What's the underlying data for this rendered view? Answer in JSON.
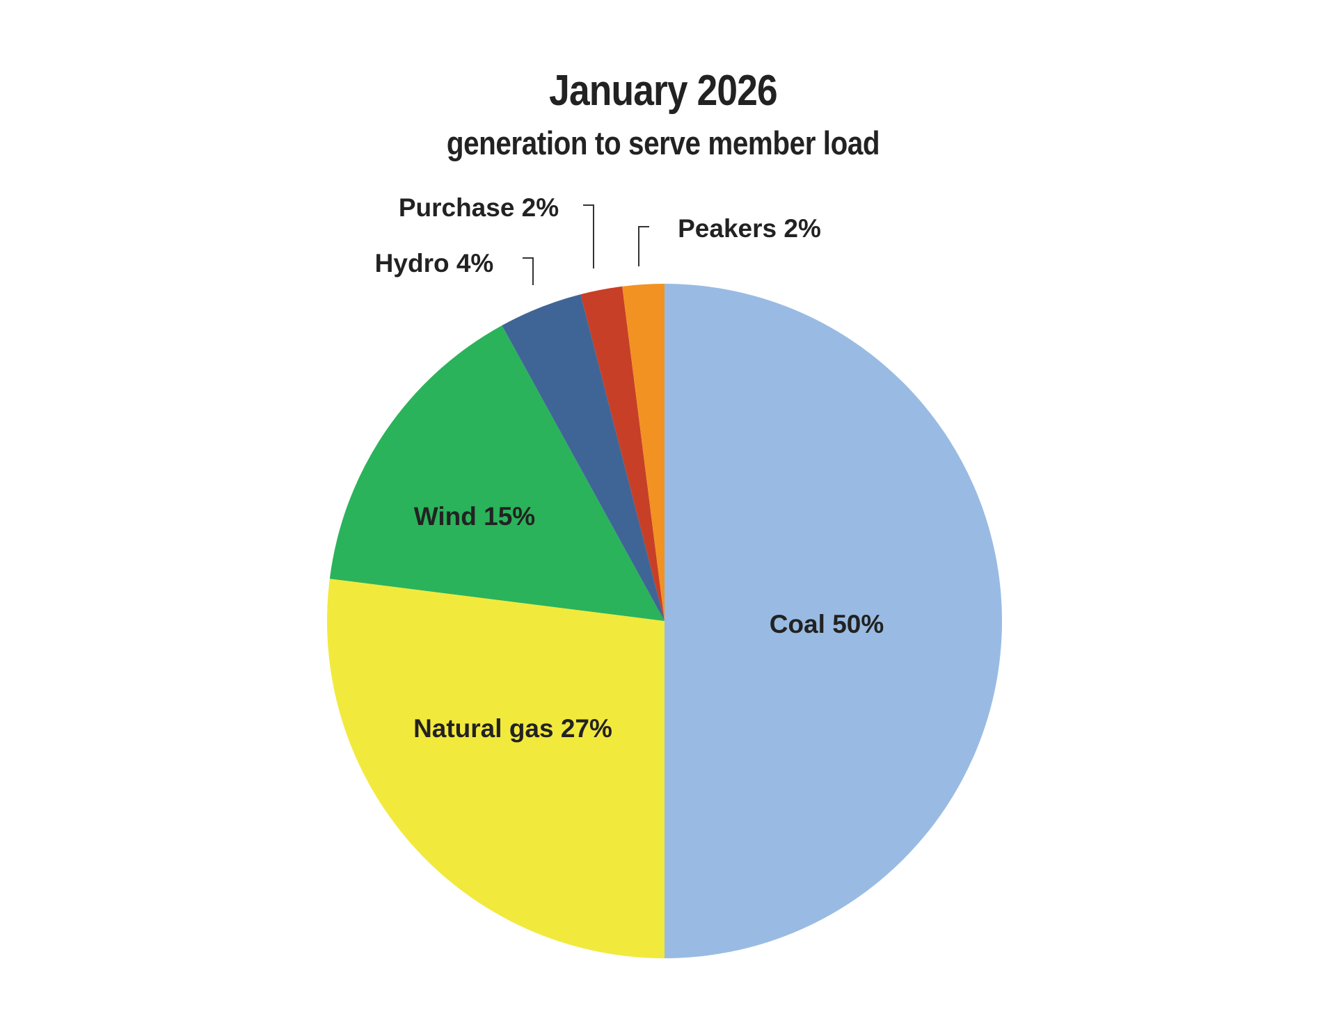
{
  "chart_data": {
    "type": "pie",
    "title": "January 2026",
    "subtitle": "generation to serve member load",
    "slices": [
      {
        "label": "Coal 50%",
        "name": "Coal",
        "value": 50,
        "color": "#99BBE3"
      },
      {
        "label": "Natural gas 27%",
        "name": "Natural gas",
        "value": 27,
        "color": "#F2E93D"
      },
      {
        "label": "Wind 15%",
        "name": "Wind",
        "value": 15,
        "color": "#2AB35A"
      },
      {
        "label": "Hydro 4%",
        "name": "Hydro",
        "value": 4,
        "color": "#3F6596"
      },
      {
        "label": "Purchase 2%",
        "name": "Purchase",
        "value": 2,
        "color": "#C73F27"
      },
      {
        "label": "Peakers 2%",
        "name": "Peakers",
        "value": 2,
        "color": "#F29222"
      }
    ]
  }
}
